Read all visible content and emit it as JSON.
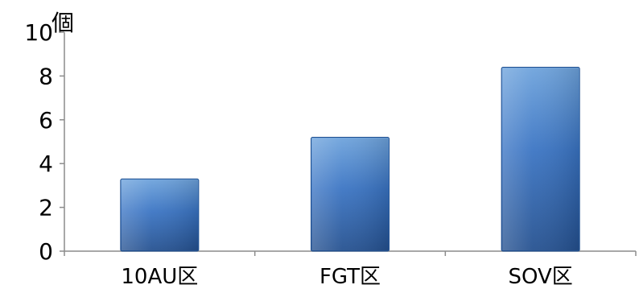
{
  "chart_data": {
    "type": "bar",
    "unit_label": "個",
    "categories": [
      "10AU区",
      "FGT区",
      "SOV区"
    ],
    "values": [
      3.3,
      5.2,
      8.4
    ],
    "ylim": [
      0,
      10
    ],
    "yticks": [
      "0",
      "2",
      "4",
      "6",
      "8",
      "10"
    ],
    "grid": false,
    "legend": "none",
    "colors": {
      "bar_top": "#6ea3dc",
      "bar_mid": "#3a74c3",
      "bar_bottom": "#24508f",
      "bar_edge": "#1f4f8f",
      "axis": "#8c8c8c"
    }
  }
}
